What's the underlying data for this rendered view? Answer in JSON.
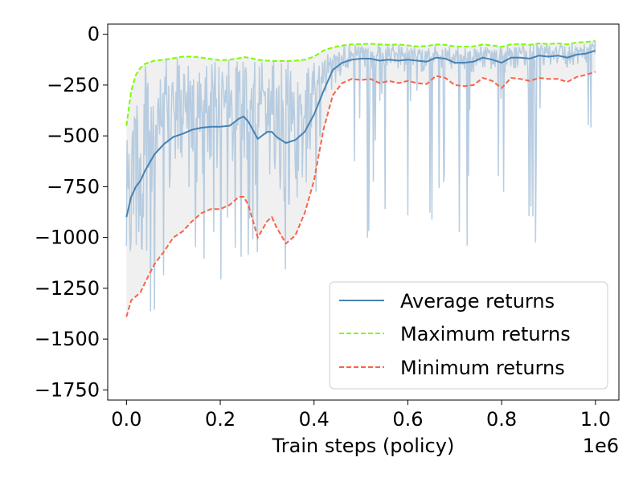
{
  "chart_data": {
    "type": "line",
    "title": "",
    "xlabel": "Train steps (policy)",
    "x_scale_label": "1e6",
    "ylabel": "",
    "xlim": [
      -0.04,
      1.05
    ],
    "ylim": [
      -1800,
      50
    ],
    "xticks": [
      0.0,
      0.2,
      0.4,
      0.6,
      0.8,
      1.0
    ],
    "xtick_labels": [
      "0.0",
      "0.2",
      "0.4",
      "0.6",
      "0.8",
      "1.0"
    ],
    "yticks": [
      0,
      -250,
      -500,
      -750,
      -1000,
      -1250,
      -1500,
      -1750
    ],
    "ytick_labels": [
      "0",
      "−250",
      "−500",
      "−750",
      "−1000",
      "−1250",
      "−1500",
      "−1750"
    ],
    "grid": false,
    "legend_position": "lower-right",
    "x": [
      0.0,
      0.01,
      0.02,
      0.03,
      0.04,
      0.06,
      0.08,
      0.1,
      0.12,
      0.14,
      0.16,
      0.18,
      0.2,
      0.22,
      0.24,
      0.25,
      0.26,
      0.28,
      0.3,
      0.31,
      0.32,
      0.34,
      0.36,
      0.38,
      0.4,
      0.42,
      0.44,
      0.46,
      0.48,
      0.5,
      0.52,
      0.54,
      0.56,
      0.58,
      0.6,
      0.62,
      0.64,
      0.66,
      0.68,
      0.7,
      0.72,
      0.74,
      0.76,
      0.78,
      0.8,
      0.82,
      0.84,
      0.86,
      0.88,
      0.9,
      0.92,
      0.94,
      0.96,
      0.98,
      1.0
    ],
    "series": [
      {
        "name": "Average returns",
        "style": "solid",
        "color": "#4682b4",
        "values": [
          -900,
          -800,
          -750,
          -720,
          -670,
          -590,
          -540,
          -505,
          -490,
          -470,
          -460,
          -455,
          -455,
          -450,
          -415,
          -405,
          -430,
          -515,
          -480,
          -480,
          -505,
          -535,
          -520,
          -480,
          -395,
          -280,
          -175,
          -140,
          -125,
          -120,
          -120,
          -130,
          -125,
          -130,
          -125,
          -130,
          -135,
          -115,
          -120,
          -140,
          -140,
          -135,
          -115,
          -125,
          -140,
          -115,
          -115,
          -120,
          -105,
          -110,
          -105,
          -115,
          -100,
          -95,
          -80
        ]
      },
      {
        "name": "Maximum returns",
        "style": "dashed",
        "color": "#7cfc00",
        "values": [
          -450,
          -280,
          -200,
          -165,
          -145,
          -130,
          -125,
          -118,
          -110,
          -110,
          -115,
          -122,
          -128,
          -125,
          -118,
          -112,
          -115,
          -125,
          -130,
          -132,
          -132,
          -132,
          -130,
          -125,
          -110,
          -80,
          -65,
          -55,
          -50,
          -48,
          -47,
          -50,
          -52,
          -50,
          -55,
          -60,
          -58,
          -50,
          -52,
          -60,
          -62,
          -60,
          -50,
          -55,
          -62,
          -50,
          -48,
          -52,
          -45,
          -48,
          -45,
          -50,
          -40,
          -38,
          -33
        ]
      },
      {
        "name": "Minimum returns",
        "style": "dashed",
        "color": "#f96347",
        "values": [
          -1390,
          -1310,
          -1290,
          -1270,
          -1220,
          -1130,
          -1070,
          -1000,
          -970,
          -920,
          -880,
          -860,
          -860,
          -840,
          -800,
          -800,
          -840,
          -1000,
          -920,
          -900,
          -950,
          -1030,
          -990,
          -880,
          -720,
          -470,
          -300,
          -240,
          -220,
          -225,
          -220,
          -240,
          -230,
          -240,
          -230,
          -240,
          -245,
          -205,
          -215,
          -250,
          -255,
          -250,
          -215,
          -230,
          -265,
          -215,
          -220,
          -230,
          -215,
          -220,
          -220,
          -235,
          -210,
          -200,
          -185
        ]
      }
    ],
    "raw_returns_color": "#b0c8de",
    "band_color": "#e6e6e6"
  }
}
